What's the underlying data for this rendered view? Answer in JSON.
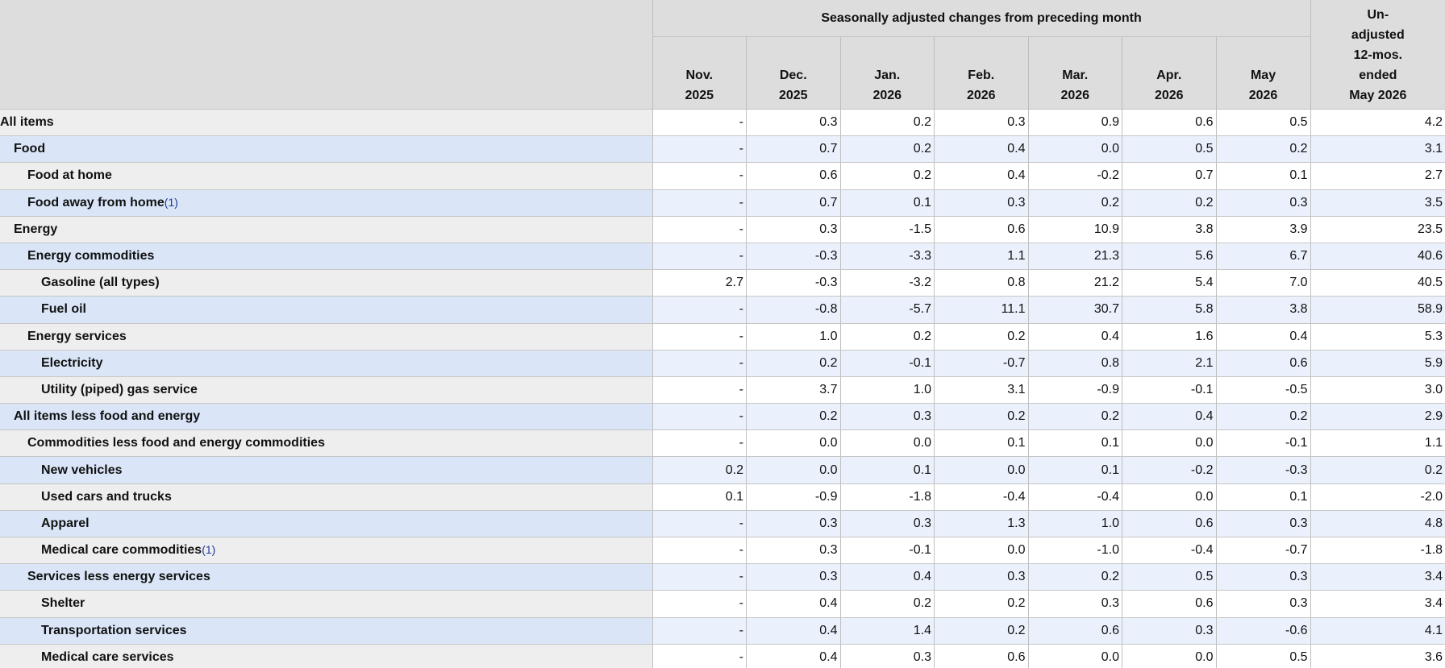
{
  "header": {
    "group_title": "Seasonally adjusted changes from preceding month",
    "columns": [
      {
        "month": "Nov.",
        "year": "2025"
      },
      {
        "month": "Dec.",
        "year": "2025"
      },
      {
        "month": "Jan.",
        "year": "2026"
      },
      {
        "month": "Feb.",
        "year": "2026"
      },
      {
        "month": "Mar.",
        "year": "2026"
      },
      {
        "month": "Apr.",
        "year": "2026"
      },
      {
        "month": "May",
        "year": "2026"
      }
    ],
    "unadjusted": [
      "Un-",
      "adjusted",
      "12-mos.",
      "ended",
      "May 2026"
    ]
  },
  "rows": [
    {
      "label": "All items",
      "values": [
        "-",
        "0.3",
        "0.2",
        "0.3",
        "0.9",
        "0.6",
        "0.5",
        "4.2"
      ],
      "children": [
        {
          "label": "Food",
          "values": [
            "-",
            "0.7",
            "0.2",
            "0.4",
            "0.0",
            "0.5",
            "0.2",
            "3.1"
          ],
          "children": [
            {
              "label": "Food at home",
              "values": [
                "-",
                "0.6",
                "0.2",
                "0.4",
                "-0.2",
                "0.7",
                "0.1",
                "2.7"
              ]
            },
            {
              "label": "Food away from home",
              "footnote": "(1)",
              "values": [
                "-",
                "0.7",
                "0.1",
                "0.3",
                "0.2",
                "0.2",
                "0.3",
                "3.5"
              ]
            }
          ]
        },
        {
          "label": "Energy",
          "values": [
            "-",
            "0.3",
            "-1.5",
            "0.6",
            "10.9",
            "3.8",
            "3.9",
            "23.5"
          ],
          "children": [
            {
              "label": "Energy commodities",
              "values": [
                "-",
                "-0.3",
                "-3.3",
                "1.1",
                "21.3",
                "5.6",
                "6.7",
                "40.6"
              ],
              "children": [
                {
                  "label": "Gasoline (all types)",
                  "values": [
                    "2.7",
                    "-0.3",
                    "-3.2",
                    "0.8",
                    "21.2",
                    "5.4",
                    "7.0",
                    "40.5"
                  ]
                },
                {
                  "label": "Fuel oil",
                  "values": [
                    "-",
                    "-0.8",
                    "-5.7",
                    "11.1",
                    "30.7",
                    "5.8",
                    "3.8",
                    "58.9"
                  ]
                }
              ]
            },
            {
              "label": "Energy services",
              "values": [
                "-",
                "1.0",
                "0.2",
                "0.2",
                "0.4",
                "1.6",
                "0.4",
                "5.3"
              ],
              "children": [
                {
                  "label": "Electricity",
                  "values": [
                    "-",
                    "0.2",
                    "-0.1",
                    "-0.7",
                    "0.8",
                    "2.1",
                    "0.6",
                    "5.9"
                  ]
                },
                {
                  "label": "Utility (piped) gas service",
                  "values": [
                    "-",
                    "3.7",
                    "1.0",
                    "3.1",
                    "-0.9",
                    "-0.1",
                    "-0.5",
                    "3.0"
                  ]
                }
              ]
            }
          ]
        },
        {
          "label": "All items less food and energy",
          "values": [
            "-",
            "0.2",
            "0.3",
            "0.2",
            "0.2",
            "0.4",
            "0.2",
            "2.9"
          ],
          "children": [
            {
              "label": "Commodities less food and energy commodities",
              "values": [
                "-",
                "0.0",
                "0.0",
                "0.1",
                "0.1",
                "0.0",
                "-0.1",
                "1.1"
              ],
              "children": [
                {
                  "label": "New vehicles",
                  "values": [
                    "0.2",
                    "0.0",
                    "0.1",
                    "0.0",
                    "0.1",
                    "-0.2",
                    "-0.3",
                    "0.2"
                  ]
                },
                {
                  "label": "Used cars and trucks",
                  "values": [
                    "0.1",
                    "-0.9",
                    "-1.8",
                    "-0.4",
                    "-0.4",
                    "0.0",
                    "0.1",
                    "-2.0"
                  ]
                },
                {
                  "label": "Apparel",
                  "values": [
                    "-",
                    "0.3",
                    "0.3",
                    "1.3",
                    "1.0",
                    "0.6",
                    "0.3",
                    "4.8"
                  ]
                },
                {
                  "label": "Medical care commodities",
                  "footnote": "(1)",
                  "values": [
                    "-",
                    "0.3",
                    "-0.1",
                    "0.0",
                    "-1.0",
                    "-0.4",
                    "-0.7",
                    "-1.8"
                  ]
                }
              ]
            },
            {
              "label": "Services less energy services",
              "values": [
                "-",
                "0.3",
                "0.4",
                "0.3",
                "0.2",
                "0.5",
                "0.3",
                "3.4"
              ],
              "children": [
                {
                  "label": "Shelter",
                  "values": [
                    "-",
                    "0.4",
                    "0.2",
                    "0.2",
                    "0.3",
                    "0.6",
                    "0.3",
                    "3.4"
                  ]
                },
                {
                  "label": "Transportation services",
                  "values": [
                    "-",
                    "0.4",
                    "1.4",
                    "0.2",
                    "0.6",
                    "0.3",
                    "-0.6",
                    "4.1"
                  ]
                },
                {
                  "label": "Medical care services",
                  "values": [
                    "-",
                    "0.4",
                    "0.3",
                    "0.6",
                    "0.0",
                    "0.0",
                    "0.5",
                    "3.6"
                  ]
                }
              ]
            }
          ]
        }
      ]
    }
  ]
}
